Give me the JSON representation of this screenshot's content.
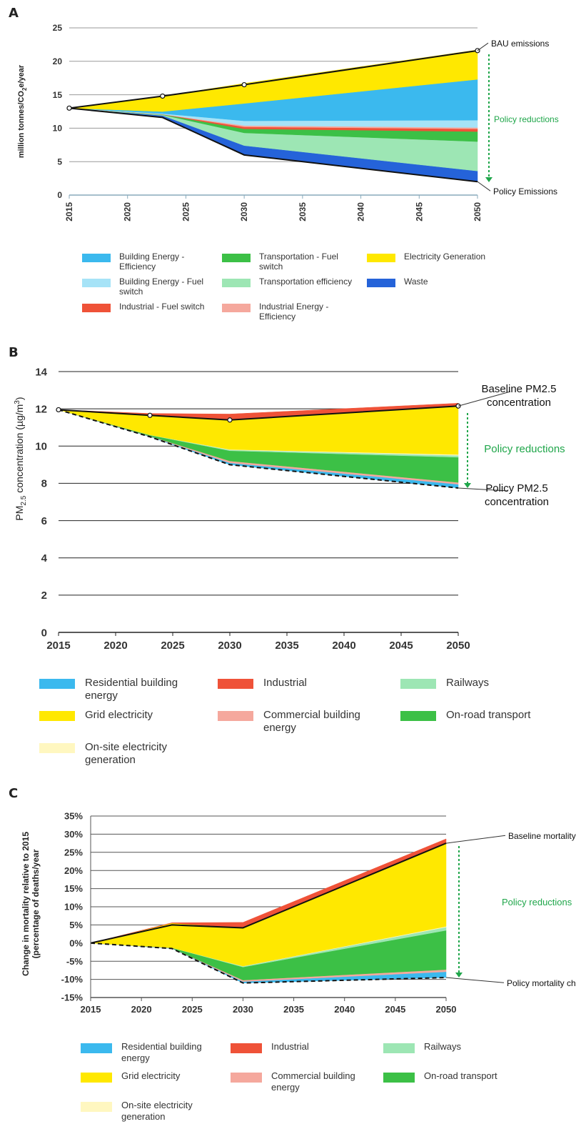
{
  "panels": [
    {
      "letter": "A",
      "chart_data": {
        "type": "area",
        "ylabel": "million tonnes/CO2e/year",
        "ylabel_main": "million tonnes/CO",
        "ylabel_sub": "2",
        "ylabel_tail": "e/year",
        "x": [
          2015,
          2023,
          2030,
          2050
        ],
        "xticks": [
          "2015",
          "2020",
          "2025",
          "2030",
          "2035",
          "2040",
          "2045",
          "2050"
        ],
        "xlim": [
          2015,
          2050
        ],
        "ylim": [
          0,
          25
        ],
        "yticks": [
          "0",
          "5",
          "10",
          "15",
          "20",
          "25"
        ],
        "baseline_name": "BAU emissions",
        "policy_name": "Policy Emissions",
        "reduction_label": "Policy reductions",
        "baseline": [
          13,
          14.8,
          16.5,
          21.6
        ],
        "policy": [
          13,
          11.6,
          6.0,
          2.0
        ],
        "stack": [
          {
            "name": "Waste",
            "color": "#2563d9",
            "values": [
              0,
              0.3,
              1.4,
              1.6
            ]
          },
          {
            "name": "Transportation efficiency",
            "color": "#9de6b4",
            "values": [
              0,
              0.1,
              1.9,
              4.4
            ]
          },
          {
            "name": "Transportation - Fuel switch",
            "color": "#3cc046",
            "values": [
              0,
              0.05,
              0.6,
              1.5
            ]
          },
          {
            "name": "Industrial - Fuel switch",
            "color": "#ef5238",
            "values": [
              0,
              0.02,
              0.3,
              0.4
            ]
          },
          {
            "name": "Industrial Energy - Efficiency",
            "color": "#f5a89d",
            "values": [
              0,
              0.02,
              0.2,
              0.2
            ]
          },
          {
            "name": "Building Energy - Fuel switch",
            "color": "#a6e3f7",
            "values": [
              0,
              0.1,
              0.7,
              1.1
            ]
          },
          {
            "name": "Building Energy - Efficiency",
            "color": "#3bb9ee",
            "values": [
              0,
              0.3,
              2.6,
              6.1
            ]
          },
          {
            "name": "Electricity Generation",
            "color": "#ffe800",
            "values": [
              0,
              2.3,
              3.0,
              4.4
            ]
          }
        ],
        "legend": [
          {
            "label": "Building Energy - Efficiency",
            "color": "#3bb9ee"
          },
          {
            "label": "Building Energy - Fuel switch",
            "color": "#a6e3f7"
          },
          {
            "label": "Industrial - Fuel switch",
            "color": "#ef5238"
          },
          {
            "label": "Transportation - Fuel switch",
            "color": "#3cc046"
          },
          {
            "label": "Transportation efficiency",
            "color": "#9de6b4"
          },
          {
            "label": "Industrial Energy - Efficiency",
            "color": "#f5a89d"
          },
          {
            "label": "Electricity Generation",
            "color": "#ffe800"
          },
          {
            "label": "Waste",
            "color": "#2563d9"
          }
        ]
      }
    },
    {
      "letter": "B",
      "chart_data": {
        "type": "area",
        "ylabel": "PM2.5 concentration (µg/m3)",
        "ylabel_main": "PM",
        "ylabel_sub": "2.5",
        "ylabel_mid": " concentration (µg/m",
        "ylabel_sup": "3",
        "ylabel_tail": ")",
        "x": [
          2015,
          2023,
          2030,
          2050
        ],
        "xticks": [
          "2015",
          "2020",
          "2025",
          "2030",
          "2035",
          "2040",
          "2045",
          "2050"
        ],
        "xlim": [
          2015,
          2050
        ],
        "ylim": [
          0,
          14
        ],
        "yticks": [
          "0",
          "2",
          "4",
          "6",
          "8",
          "10",
          "12",
          "14"
        ],
        "baseline_name": "Baseline PM2.5 concentration",
        "policy_name": "Policy PM2.5 concentration",
        "reduction_label": "Policy reductions",
        "baseline": [
          11.95,
          11.65,
          11.4,
          12.15
        ],
        "policy": [
          11.95,
          10.5,
          9.0,
          7.75
        ],
        "stack": [
          {
            "name": "Residential building energy",
            "color": "#3bb9ee",
            "values": [
              0,
              0.02,
              0.1,
              0.2
            ]
          },
          {
            "name": "Commercial building energy",
            "color": "#f5a89d",
            "values": [
              0,
              0.02,
              0.1,
              0.1
            ]
          },
          {
            "name": "On-road transport",
            "color": "#3cc046",
            "values": [
              0,
              0.05,
              0.55,
              1.35
            ]
          },
          {
            "name": "Railways",
            "color": "#9de6b4",
            "values": [
              0,
              0.01,
              0.05,
              0.1
            ]
          },
          {
            "name": "On-site electricity generation",
            "color": "#fff7c0",
            "values": [
              0,
              0.0,
              0.02,
              0.05
            ]
          },
          {
            "name": "Grid electricity",
            "color": "#ffe800",
            "values": [
              0,
              1.1,
              1.6,
              2.6
            ]
          },
          {
            "name": "Industrial",
            "color": "#ef5238",
            "values": [
              0,
              0.05,
              0.3,
              0.15
            ]
          }
        ],
        "legend": [
          {
            "label": "Residential building energy",
            "color": "#3bb9ee"
          },
          {
            "label": "Grid electricity",
            "color": "#ffe800"
          },
          {
            "label": "On-site electricity generation",
            "color": "#fff7c0"
          },
          {
            "label": "Industrial",
            "color": "#ef5238"
          },
          {
            "label": "Commercial building energy",
            "color": "#f5a89d"
          },
          {
            "label": "Railways",
            "color": "#9de6b4"
          },
          {
            "label": "On-road transport",
            "color": "#3cc046"
          }
        ]
      }
    },
    {
      "letter": "C",
      "chart_data": {
        "type": "area",
        "ylabel": "Change in mortality relative to 2015 (percentage of deaths/year",
        "ylabel_line1": "Change in mortality relative to 2015",
        "ylabel_line2": "(percentage of deaths/year",
        "x": [
          2015,
          2023,
          2030,
          2050
        ],
        "xticks": [
          "2015",
          "2020",
          "2025",
          "2030",
          "2035",
          "2040",
          "2045",
          "2050"
        ],
        "xlim": [
          2015,
          2050
        ],
        "ylim": [
          -15,
          35
        ],
        "yticks": [
          "-15%",
          "-10%",
          "-5%",
          "0%",
          "5%",
          "10%",
          "15%",
          "20%",
          "25%",
          "30%",
          "35%"
        ],
        "baseline_name": "Baseline mortality change",
        "policy_name": "Policy mortality change",
        "reduction_label": "Policy reductions",
        "baseline": [
          0,
          5.0,
          4.2,
          27.5
        ],
        "policy": [
          0,
          -1.5,
          -11.0,
          -9.5
        ],
        "stack": [
          {
            "name": "Residential building energy",
            "color": "#3bb9ee",
            "values": [
              0,
              0.05,
              0.4,
              1.6
            ]
          },
          {
            "name": "Commercial building energy",
            "color": "#f5a89d",
            "values": [
              0,
              0.05,
              0.4,
              0.6
            ]
          },
          {
            "name": "On-road transport",
            "color": "#3cc046",
            "values": [
              0,
              0.1,
              3.6,
              10.8
            ]
          },
          {
            "name": "Railways",
            "color": "#9de6b4",
            "values": [
              0,
              0.02,
              0.2,
              0.9
            ]
          },
          {
            "name": "On-site electricity generation",
            "color": "#fff7c0",
            "values": [
              0,
              0.0,
              0.05,
              0.2
            ]
          },
          {
            "name": "Grid electricity",
            "color": "#ffe800",
            "values": [
              0,
              6.78,
              10.55,
              23.0
            ]
          },
          {
            "name": "Industrial",
            "color": "#ef5238",
            "values": [
              0,
              0.1,
              1.5,
              1.1
            ]
          }
        ],
        "legend": [
          {
            "label": "Residential building energy",
            "color": "#3bb9ee"
          },
          {
            "label": "Grid electricity",
            "color": "#ffe800"
          },
          {
            "label": "On-site electricity generation",
            "color": "#fff7c0"
          },
          {
            "label": "Industrial",
            "color": "#ef5238"
          },
          {
            "label": "Commercial building energy",
            "color": "#f5a89d"
          },
          {
            "label": "Railways",
            "color": "#9de6b4"
          },
          {
            "label": "On-road transport",
            "color": "#3cc046"
          }
        ]
      }
    }
  ]
}
